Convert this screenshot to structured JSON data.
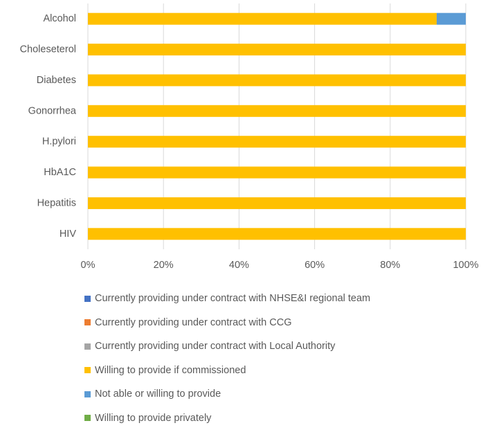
{
  "chart_data": {
    "type": "bar",
    "orientation": "horizontal",
    "stacked": true,
    "percent_stacked": true,
    "categories": [
      "Alcohol",
      "Choleseterol",
      "Diabetes",
      "Gonorrhea",
      "H.pylori",
      "HbA1C",
      "Hepatitis",
      "HIV"
    ],
    "series": [
      {
        "name": "Currently providing under contract with NHSE&I regional team",
        "color": "#4472C4",
        "values": [
          0,
          0,
          0,
          0,
          0,
          0,
          0,
          0
        ]
      },
      {
        "name": "Currently providing under contract with CCG",
        "color": "#ED7D31",
        "values": [
          0,
          0,
          0,
          0,
          0,
          0,
          0,
          0
        ]
      },
      {
        "name": "Currently providing under contract with Local Authority",
        "color": "#A5A5A5",
        "values": [
          0,
          0,
          0,
          0,
          0,
          0,
          0,
          0
        ]
      },
      {
        "name": "Willing to provide if commissioned",
        "color": "#FFC000",
        "values": [
          92.3,
          100,
          100,
          100,
          100,
          100,
          100,
          100
        ]
      },
      {
        "name": "Not able or willing to provide",
        "color": "#5B9BD5",
        "values": [
          7.7,
          0,
          0,
          0,
          0,
          0,
          0,
          0
        ]
      },
      {
        "name": "Willing to provide privately",
        "color": "#70AD47",
        "values": [
          0,
          0,
          0,
          0,
          0,
          0,
          0,
          0
        ]
      }
    ],
    "xlim": [
      0,
      100
    ],
    "x_ticks": [
      "0%",
      "20%",
      "40%",
      "60%",
      "80%",
      "100%"
    ],
    "grid": "vertical",
    "legend_position": "bottom",
    "title": "",
    "xlabel": "",
    "ylabel": ""
  }
}
